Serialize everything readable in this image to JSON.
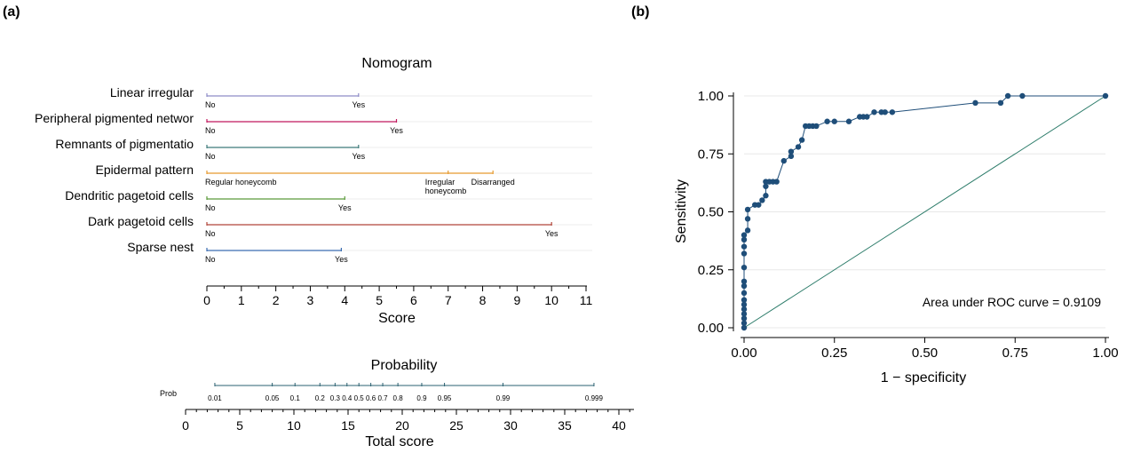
{
  "panel_a_label": "(a)",
  "panel_b_label": "(b)",
  "chart_data": [
    {
      "type": "nomogram",
      "title": "Nomogram",
      "score_axis": {
        "label": "Score",
        "range": [
          0,
          11
        ],
        "ticks": [
          "0",
          "1",
          "2",
          "3",
          "4",
          "5",
          "6",
          "7",
          "8",
          "9",
          "10",
          "11"
        ]
      },
      "predictors": [
        {
          "name": "Linear irregular",
          "color": "#8e8cc8",
          "levels": [
            {
              "label": "No",
              "score": 0
            },
            {
              "label": "Yes",
              "score": 4.4
            }
          ]
        },
        {
          "name": "Peripheral pigmented networ",
          "color": "#c0185e",
          "levels": [
            {
              "label": "No",
              "score": 0
            },
            {
              "label": "Yes",
              "score": 5.5
            }
          ]
        },
        {
          "name": "Remnants of pigmentatio",
          "color": "#3d7a7a",
          "levels": [
            {
              "label": "No",
              "score": 0
            },
            {
              "label": "Yes",
              "score": 4.4
            }
          ]
        },
        {
          "name": "Epidermal pattern",
          "color": "#e69a2e",
          "levels": [
            {
              "label": "Regular honeycomb",
              "score": 0
            },
            {
              "label": "Irregular honeycomb",
              "score": 7.0
            },
            {
              "label": "Disarranged",
              "score": 8.3
            }
          ]
        },
        {
          "name": "Dendritic pagetoid cells",
          "color": "#5a9a3a",
          "levels": [
            {
              "label": "No",
              "score": 0
            },
            {
              "label": "Yes",
              "score": 4.0
            }
          ]
        },
        {
          "name": "Dark pagetoid cells",
          "color": "#b0453a",
          "levels": [
            {
              "label": "No",
              "score": 0
            },
            {
              "label": "Yes",
              "score": 10.0
            }
          ]
        },
        {
          "name": "Sparse nest",
          "color": "#3a6cb0",
          "levels": [
            {
              "label": "No",
              "score": 0
            },
            {
              "label": "Yes",
              "score": 3.9
            }
          ]
        }
      ],
      "probability": {
        "title": "Probability",
        "row_label": "Prob",
        "points": [
          {
            "label": "0.01",
            "total": 2.7
          },
          {
            "label": "0.05",
            "total": 8.0
          },
          {
            "label": "0.1",
            "total": 10.1
          },
          {
            "label": "0.2",
            "total": 12.4
          },
          {
            "label": "0.3",
            "total": 13.8
          },
          {
            "label": "0.4",
            "total": 14.9
          },
          {
            "label": "0.5",
            "total": 16.0
          },
          {
            "label": "0.6",
            "total": 17.1
          },
          {
            "label": "0.7",
            "total": 18.2
          },
          {
            "label": "0.8",
            "total": 19.6
          },
          {
            "label": "0.9",
            "total": 21.8
          },
          {
            "label": "0.95",
            "total": 23.9
          },
          {
            "label": "0.99",
            "total": 29.3
          },
          {
            "label": "0.999",
            "total": 37.7
          }
        ],
        "total_axis": {
          "label": "Total score",
          "range": [
            0,
            40
          ],
          "ticks": [
            "0",
            "5",
            "10",
            "15",
            "20",
            "25",
            "30",
            "35",
            "40"
          ]
        }
      }
    },
    {
      "type": "line",
      "xlabel": "1 − specificity",
      "ylabel": "Sensitivity",
      "xlim": [
        0,
        1
      ],
      "ylim": [
        0,
        1
      ],
      "xticks": [
        "0.00",
        "0.25",
        "0.50",
        "0.75",
        "1.00"
      ],
      "yticks": [
        "0.00",
        "0.25",
        "0.50",
        "0.75",
        "1.00"
      ],
      "annotation": "Area under ROC curve = 0.9109",
      "colors": {
        "curve": "#1f4e79",
        "reference": "#2e7d6b"
      },
      "series": [
        {
          "marker": "circle",
          "points": [
            [
              0,
              0
            ],
            [
              0,
              0.02
            ],
            [
              0,
              0.04
            ],
            [
              0,
              0.06
            ],
            [
              0,
              0.08
            ],
            [
              0,
              0.1
            ],
            [
              0,
              0.12
            ],
            [
              0,
              0.15
            ],
            [
              0,
              0.18
            ],
            [
              0,
              0.2
            ],
            [
              0,
              0.26
            ],
            [
              0,
              0.32
            ],
            [
              0,
              0.35
            ],
            [
              0,
              0.38
            ],
            [
              0,
              0.4
            ],
            [
              0.01,
              0.42
            ],
            [
              0.01,
              0.47
            ],
            [
              0.01,
              0.51
            ],
            [
              0.03,
              0.53
            ],
            [
              0.04,
              0.53
            ],
            [
              0.05,
              0.55
            ],
            [
              0.06,
              0.57
            ],
            [
              0.06,
              0.61
            ],
            [
              0.06,
              0.63
            ],
            [
              0.07,
              0.63
            ],
            [
              0.08,
              0.63
            ],
            [
              0.09,
              0.63
            ],
            [
              0.11,
              0.72
            ],
            [
              0.13,
              0.74
            ],
            [
              0.13,
              0.76
            ],
            [
              0.15,
              0.78
            ],
            [
              0.16,
              0.81
            ],
            [
              0.17,
              0.87
            ],
            [
              0.18,
              0.87
            ],
            [
              0.19,
              0.87
            ],
            [
              0.2,
              0.87
            ],
            [
              0.23,
              0.89
            ],
            [
              0.25,
              0.89
            ],
            [
              0.29,
              0.89
            ],
            [
              0.32,
              0.91
            ],
            [
              0.33,
              0.91
            ],
            [
              0.34,
              0.91
            ],
            [
              0.36,
              0.93
            ],
            [
              0.38,
              0.93
            ],
            [
              0.39,
              0.93
            ],
            [
              0.41,
              0.93
            ],
            [
              0.64,
              0.97
            ],
            [
              0.71,
              0.97
            ],
            [
              0.73,
              1.0
            ],
            [
              0.77,
              1.0
            ],
            [
              1,
              1
            ]
          ]
        },
        {
          "points": [
            [
              0,
              0
            ],
            [
              1,
              1
            ]
          ]
        }
      ]
    }
  ]
}
